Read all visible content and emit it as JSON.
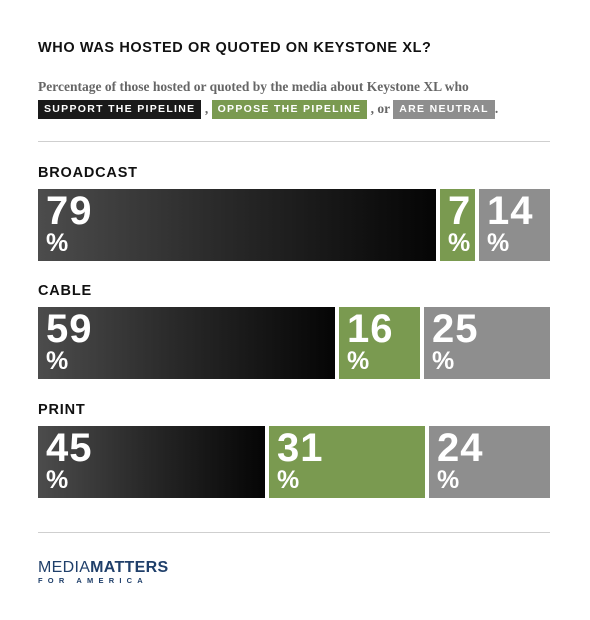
{
  "title": "WHO WAS HOSTED OR QUOTED ON KEYSTONE XL?",
  "subtitle": {
    "text": "Percentage of those hosted or quoted by the media about Keystone XL who",
    "sep1": ",",
    "sep2": ", or",
    "end": "."
  },
  "colors": {
    "support": "#1a1a1a",
    "oppose": "#7a9a50",
    "neutral": "#8e8e8e"
  },
  "chart_data": {
    "type": "bar",
    "stacked": true,
    "orientation": "horizontal",
    "title": "WHO WAS HOSTED OR QUOTED ON KEYSTONE XL?",
    "legend": [
      {
        "key": "support",
        "label": "SUPPORT THE PIPELINE"
      },
      {
        "key": "oppose",
        "label": "OPPOSE THE PIPELINE"
      },
      {
        "key": "neutral",
        "label": "ARE NEUTRAL"
      }
    ],
    "categories": [
      "BROADCAST",
      "CABLE",
      "PRINT"
    ],
    "series": [
      {
        "name": "SUPPORT THE PIPELINE",
        "key": "support",
        "values": [
          79,
          59,
          45
        ]
      },
      {
        "name": "OPPOSE THE PIPELINE",
        "key": "oppose",
        "values": [
          7,
          16,
          31
        ]
      },
      {
        "name": "ARE NEUTRAL",
        "key": "neutral",
        "values": [
          14,
          25,
          24
        ]
      }
    ],
    "unit": "%",
    "xlim": [
      0,
      100
    ]
  },
  "logo": {
    "main_thin": "MEDIA",
    "main_bold": "MATTERS",
    "sub": "FOR AMERICA"
  }
}
